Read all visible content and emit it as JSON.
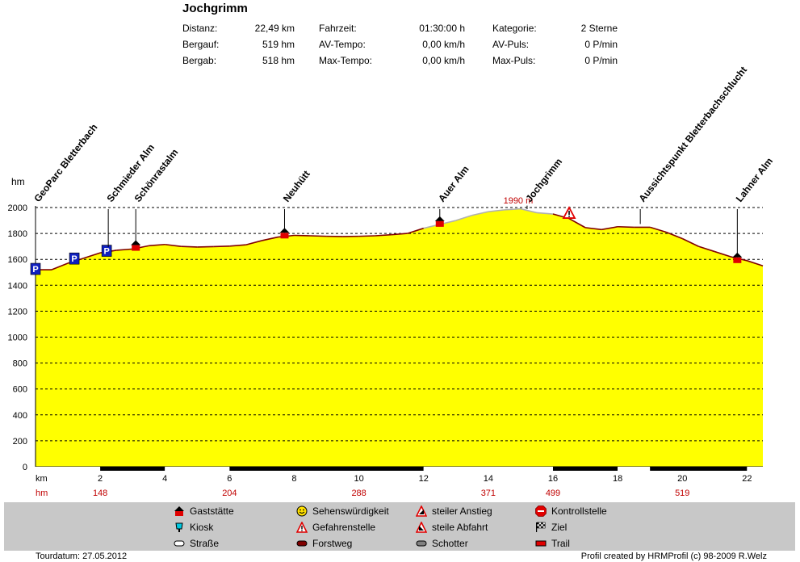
{
  "header": {
    "title": "Jochgrimm",
    "stats": [
      {
        "label": "Distanz:",
        "value": "22,49 km"
      },
      {
        "label": "Bergauf:",
        "value": "519 hm"
      },
      {
        "label": "Bergab:",
        "value": "518 hm"
      },
      {
        "label": "Fahrzeit:",
        "value": "01:30:00 h"
      },
      {
        "label": "AV-Tempo:",
        "value": "0,00 km/h"
      },
      {
        "label": "Max-Tempo:",
        "value": "0,00 km/h"
      },
      {
        "label": "Kategorie:",
        "value": "2 Sterne"
      },
      {
        "label": "AV-Puls:",
        "value": "0 P/min"
      },
      {
        "label": "Max-Puls:",
        "value": "0 P/min"
      }
    ]
  },
  "chart_data": {
    "type": "area",
    "ylabel": "hm",
    "xlabel": "km",
    "ylim": [
      0,
      2000
    ],
    "xlim": [
      0,
      22.49
    ],
    "y_ticks": [
      0,
      200,
      400,
      600,
      800,
      1000,
      1200,
      1400,
      1600,
      1800,
      2000
    ],
    "x_ticks": [
      2,
      4,
      6,
      8,
      10,
      12,
      14,
      16,
      18,
      20,
      22
    ],
    "grid": true,
    "fill_color": "#ffff00",
    "line_color": "#800000",
    "x": [
      0,
      0.5,
      1.0,
      1.5,
      2.0,
      2.5,
      3.0,
      3.5,
      4.0,
      4.5,
      5.0,
      5.5,
      6.0,
      6.5,
      7.0,
      7.5,
      8.0,
      8.5,
      9.0,
      9.5,
      10.0,
      10.5,
      11.0,
      11.5,
      12.0,
      12.5,
      13.0,
      13.5,
      14.0,
      14.5,
      15.0,
      15.5,
      16.0,
      16.5,
      17.0,
      17.5,
      18.0,
      18.5,
      19.0,
      19.5,
      20.0,
      20.5,
      21.0,
      21.5,
      22.0,
      22.49
    ],
    "y": [
      1520,
      1520,
      1570,
      1610,
      1650,
      1670,
      1680,
      1705,
      1715,
      1700,
      1695,
      1698,
      1702,
      1712,
      1745,
      1772,
      1785,
      1782,
      1778,
      1776,
      1778,
      1782,
      1790,
      1800,
      1840,
      1870,
      1900,
      1940,
      1968,
      1982,
      1990,
      1960,
      1950,
      1915,
      1845,
      1830,
      1852,
      1848,
      1848,
      1810,
      1760,
      1700,
      1660,
      1620,
      1590,
      1550
    ],
    "max_label": "1990 m",
    "max_at_km": 15.0,
    "segments": [
      {
        "from": 0,
        "to": 2,
        "type": "Trail"
      },
      {
        "from": 2,
        "to": 4,
        "type": "Forstweg"
      },
      {
        "from": 4,
        "to": 6,
        "type": "Trail"
      },
      {
        "from": 6,
        "to": 12,
        "type": "Forstweg"
      },
      {
        "from": 12,
        "to": 16,
        "type": "Straße"
      },
      {
        "from": 16,
        "to": 18,
        "type": "Forstweg"
      },
      {
        "from": 18,
        "to": 19,
        "type": "Trail"
      },
      {
        "from": 19,
        "to": 22,
        "type": "Forstweg"
      },
      {
        "from": 22,
        "to": 22.49,
        "type": "Trail"
      }
    ],
    "cumulative_row_label": "hm",
    "cumulative_hm": [
      {
        "km": 2,
        "hm": "148"
      },
      {
        "km": 6,
        "hm": "204"
      },
      {
        "km": 10,
        "hm": "288"
      },
      {
        "km": 14,
        "hm": "371"
      },
      {
        "km": 16,
        "hm": "499"
      },
      {
        "km": 20,
        "hm": "519"
      }
    ],
    "waypoints": [
      {
        "name": "GeoParc Bletterbach",
        "km": 0.0,
        "elev": 1520,
        "icon": "parking-icon"
      },
      {
        "name": "",
        "km": 1.2,
        "elev": 1600,
        "icon": "parking-icon"
      },
      {
        "name": "",
        "km": 2.2,
        "elev": 1660,
        "icon": "parking-icon"
      },
      {
        "name": "Schmieder Alm",
        "km": 2.25,
        "elev": 1670,
        "icon": ""
      },
      {
        "name": "Schönrastalm",
        "km": 3.1,
        "elev": 1685,
        "icon": "gaststaette-icon"
      },
      {
        "name": "Neuhütt",
        "km": 7.7,
        "elev": 1780,
        "icon": "gaststaette-icon"
      },
      {
        "name": "Auer Alm",
        "km": 12.5,
        "elev": 1870,
        "icon": "gaststaette-icon"
      },
      {
        "name": "Jochgrimm",
        "km": 15.2,
        "elev": 1990,
        "icon": ""
      },
      {
        "name": "",
        "km": 16.5,
        "elev": 1925,
        "icon": "gefahrenstelle-icon"
      },
      {
        "name": "Aussichtspunkt Bletterbachschlucht",
        "km": 18.7,
        "elev": 1848,
        "icon": ""
      },
      {
        "name": "Lahner Alm",
        "km": 21.7,
        "elev": 1590,
        "icon": "gaststaette-icon"
      }
    ]
  },
  "legend": [
    {
      "label": "Gaststätte",
      "icon": "gaststaette-icon"
    },
    {
      "label": "Kiosk",
      "icon": "kiosk-icon"
    },
    {
      "label": "Straße",
      "icon": "strasse-icon"
    },
    {
      "label": "Sehenswürdigkeit",
      "icon": "smiley-icon"
    },
    {
      "label": "Gefahrenstelle",
      "icon": "gefahrenstelle-icon"
    },
    {
      "label": "Forstweg",
      "icon": "forstweg-icon"
    },
    {
      "label": "steiler Anstieg",
      "icon": "steiler-anstieg-icon"
    },
    {
      "label": "steile Abfahrt",
      "icon": "steile-abfahrt-icon"
    },
    {
      "label": "Schotter",
      "icon": "schotter-icon"
    },
    {
      "label": "Kontrollstelle",
      "icon": "stop-icon"
    },
    {
      "label": "Ziel",
      "icon": "finish-flag-icon"
    },
    {
      "label": "Trail",
      "icon": "trail-icon"
    }
  ],
  "footer": {
    "date": "Tourdatum: 27.05.2012",
    "credit": "Profil created by HRMProfil (c) 98-2009 R.Welz"
  }
}
